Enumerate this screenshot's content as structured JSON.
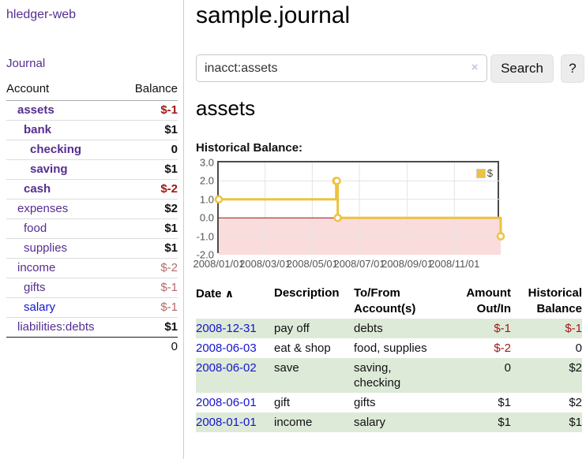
{
  "app": {
    "brand": "hledger-web"
  },
  "sidebar": {
    "journal_link": "Journal",
    "accounts": {
      "account_header": "Account",
      "balance_header": "Balance",
      "rows": [
        {
          "name": "assets",
          "indent": 1,
          "bold": true,
          "balance": "$-1",
          "balance_class": "neg-strong"
        },
        {
          "name": "bank",
          "indent": 2,
          "bold": true,
          "balance": "$1",
          "balance_class": ""
        },
        {
          "name": "checking",
          "indent": 3,
          "bold": true,
          "balance": "0",
          "balance_class": ""
        },
        {
          "name": "saving",
          "indent": 3,
          "bold": true,
          "balance": "$1",
          "balance_class": ""
        },
        {
          "name": "cash",
          "indent": 2,
          "bold": true,
          "balance": "$-2",
          "balance_class": "neg-strong"
        },
        {
          "name": "expenses",
          "indent": 1,
          "bold": false,
          "balance": "$2",
          "balance_class": ""
        },
        {
          "name": "food",
          "indent": 2,
          "bold": false,
          "balance": "$1",
          "balance_class": ""
        },
        {
          "name": "supplies",
          "indent": 2,
          "bold": false,
          "balance": "$1",
          "balance_class": ""
        },
        {
          "name": "income",
          "indent": 1,
          "bold": false,
          "balance": "$-2",
          "balance_class": "rose"
        },
        {
          "name": "gifts",
          "indent": 2,
          "bold": false,
          "balance": "$-1",
          "balance_class": "rose"
        },
        {
          "name": "salary",
          "indent": 2,
          "bold": false,
          "link_color": "blue",
          "balance": "$-1",
          "balance_class": "rose"
        },
        {
          "name": "liabilities:debts",
          "indent": 1,
          "bold": false,
          "balance": "$1",
          "balance_class": ""
        }
      ],
      "total": "0"
    }
  },
  "main": {
    "title": "sample.journal",
    "search": {
      "value": "inacct:assets",
      "clear_icon": "×",
      "button": "Search",
      "help_button": "?"
    },
    "account_heading": "assets",
    "chart_title": "Historical Balance:"
  },
  "chart_data": {
    "type": "line",
    "title": "Historical Balance",
    "legend_label": "$",
    "legend_position": "top-right",
    "step": true,
    "grid": true,
    "series": [
      {
        "name": "$",
        "color": "#edc240",
        "points": [
          {
            "date": "2008-01-01",
            "value": 1
          },
          {
            "date": "2008-06-01",
            "value": 2
          },
          {
            "date": "2008-06-02",
            "value": 2
          },
          {
            "date": "2008-06-03",
            "value": 0
          },
          {
            "date": "2008-12-31",
            "value": -1
          }
        ]
      }
    ],
    "x_domain": [
      "2008-01-01",
      "2008-12-31"
    ],
    "x_ticks": [
      "2008-01-01",
      "2008-03-01",
      "2008-05-01",
      "2008-07-01",
      "2008-09-01",
      "2008-11-01"
    ],
    "x_tick_labels": [
      "2008/01/01",
      "2008/03/01",
      "2008/05/01",
      "2008/07/01",
      "2008/09/01",
      "2008/11/01"
    ],
    "y_ticks": [
      3,
      2,
      1,
      0,
      -1,
      -2
    ],
    "y_tick_labels": [
      "3.0",
      "2.0",
      "1.0",
      "0.0",
      "-1.0",
      "-2.0"
    ],
    "ylim": [
      -2,
      3
    ],
    "negative_region_color": "#fadcdc",
    "zero_line_color": "#9d1212",
    "grid_color": "#e3e3e3"
  },
  "transactions": {
    "columns": {
      "date": "Date",
      "sort_icon": "∧",
      "description": "Description",
      "accounts": "To/From Account(s)",
      "amount": "Amount Out/In",
      "balance": "Historical Balance"
    },
    "rows": [
      {
        "date": "2008-12-31",
        "description": "pay off",
        "accounts": "debts",
        "amount": "$-1",
        "balance": "$-1"
      },
      {
        "date": "2008-06-03",
        "description": "eat & shop",
        "accounts": "food, supplies",
        "amount": "$-2",
        "balance": "0"
      },
      {
        "date": "2008-06-02",
        "description": "save",
        "accounts": "saving, checking",
        "amount": "0",
        "balance": "$2"
      },
      {
        "date": "2008-06-01",
        "description": "gift",
        "accounts": "gifts",
        "amount": "$1",
        "balance": "$2"
      },
      {
        "date": "2008-01-01",
        "description": "income",
        "accounts": "salary",
        "amount": "$1",
        "balance": "$1"
      }
    ]
  }
}
